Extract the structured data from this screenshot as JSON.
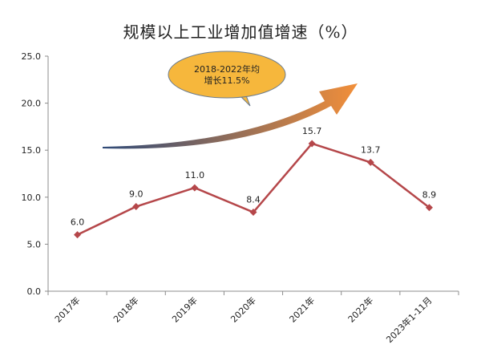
{
  "chart_data": {
    "type": "line",
    "title": "规模以上工业增加值增速（%）",
    "categories": [
      "2017年",
      "2018年",
      "2019年",
      "2020年",
      "2021年",
      "2022年",
      "2023年1-11月"
    ],
    "series": [
      {
        "values": [
          6.0,
          9.0,
          11.0,
          8.4,
          15.7,
          13.7,
          8.9
        ],
        "labels": [
          "6.0",
          "9.0",
          "11.0",
          "8.4",
          "15.7",
          "13.7",
          "8.9"
        ]
      }
    ],
    "ylim": [
      0,
      25
    ],
    "yticks": [
      "0.0",
      "5.0",
      "10.0",
      "15.0",
      "20.0",
      "25.0"
    ],
    "ytick_values": [
      0,
      5,
      10,
      15,
      20,
      25
    ],
    "grid": false,
    "line_color": "#b5474a",
    "annotation": {
      "lines": [
        "2018-2022年均",
        "增长11.5%"
      ],
      "color": "#f6b73c"
    },
    "arrow_colors": [
      "#2f4a78",
      "#f28f3a"
    ]
  }
}
